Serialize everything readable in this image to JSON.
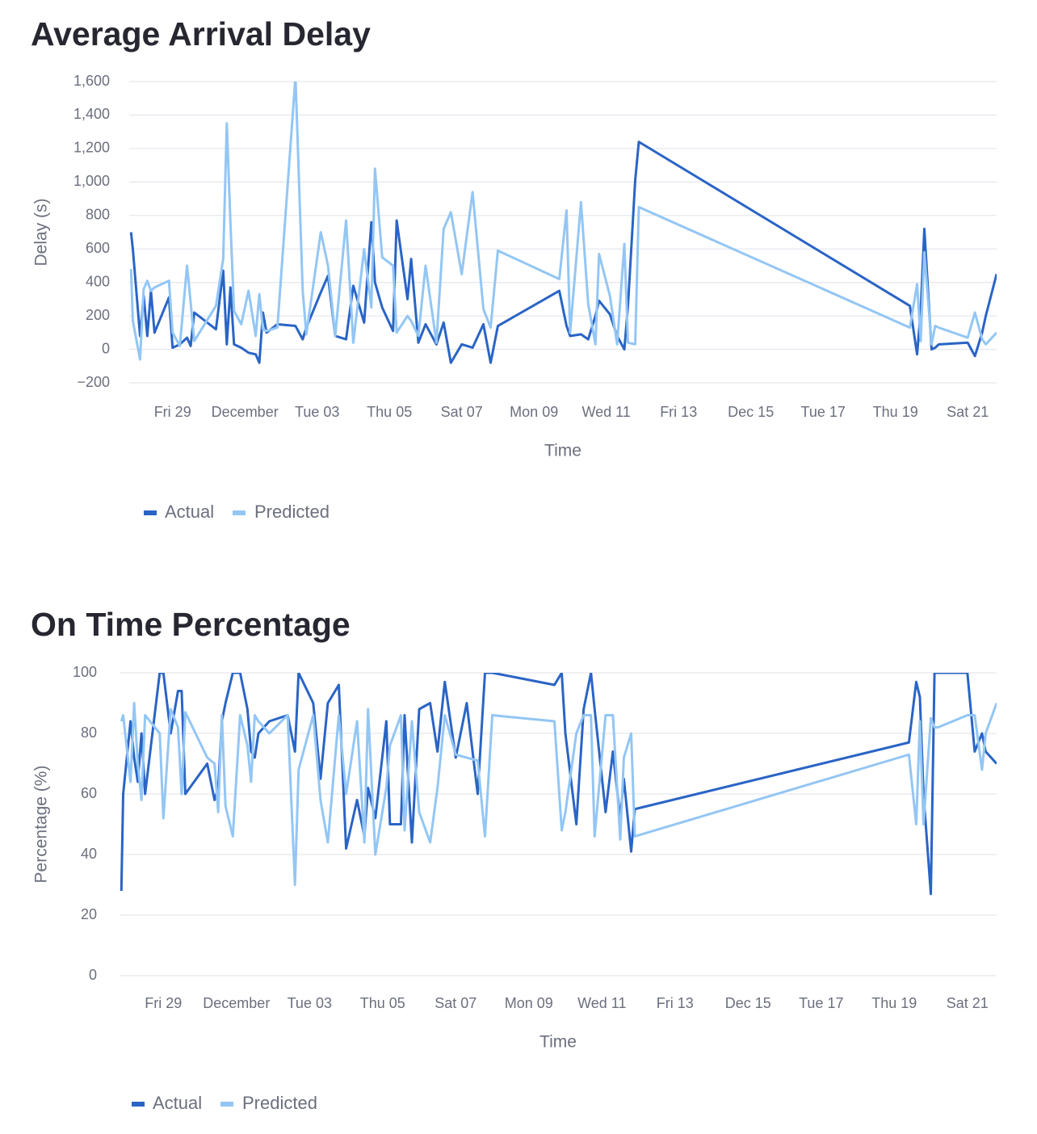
{
  "chart_data": [
    {
      "type": "line",
      "title": "Average Arrival Delay",
      "x_label": "Time",
      "y_label": "Delay (s)",
      "x": [
        27.85,
        27.9,
        28.1,
        28.2,
        28.3,
        28.4,
        28.5,
        28.9,
        29.0,
        29.2,
        29.4,
        29.5,
        29.6,
        30.2,
        30.4,
        30.5,
        30.6,
        30.7,
        30.9,
        31.1,
        31.3,
        31.4,
        31.5,
        31.6,
        31.9,
        32.4,
        32.6,
        32.7,
        33.1,
        33.3,
        33.5,
        33.8,
        34.0,
        34.3,
        34.5,
        34.6,
        34.8,
        35.1,
        35.2,
        35.5,
        35.6,
        35.8,
        36.0,
        36.3,
        36.5,
        36.7,
        37.0,
        37.3,
        37.6,
        37.8,
        38.0,
        39.7,
        39.9,
        40.0,
        40.3,
        40.5,
        40.7,
        40.8,
        41.1,
        41.3,
        41.5,
        41.6,
        41.8,
        41.9,
        49.4,
        49.6,
        49.7,
        49.8,
        50.0,
        50.1,
        50.2,
        51.0,
        51.2,
        51.4,
        51.5,
        51.8
      ],
      "series": [
        {
          "name": "Actual",
          "color": "#2a64c5",
          "values": [
            700,
            600,
            80,
            320,
            80,
            350,
            100,
            310,
            10,
            30,
            70,
            20,
            220,
            120,
            470,
            30,
            370,
            30,
            10,
            -20,
            -30,
            -80,
            220,
            100,
            150,
            140,
            60,
            130,
            340,
            440,
            80,
            60,
            380,
            160,
            760,
            400,
            250,
            110,
            770,
            300,
            540,
            40,
            150,
            30,
            160,
            -80,
            30,
            10,
            150,
            -80,
            140,
            350,
            140,
            80,
            90,
            60,
            200,
            290,
            210,
            80,
            0,
            260,
            1010,
            1240,
            260,
            -30,
            230,
            720,
            0,
            10,
            30,
            40,
            -40,
            100,
            200,
            450
          ]
        },
        {
          "name": "Predicted",
          "color": "#93c6f4",
          "values": [
            480,
            170,
            -60,
            360,
            410,
            350,
            370,
            410,
            100,
            20,
            500,
            280,
            50,
            260,
            540,
            1350,
            760,
            230,
            150,
            350,
            80,
            330,
            120,
            110,
            130,
            1630,
            350,
            90,
            700,
            500,
            80,
            770,
            40,
            600,
            250,
            1080,
            550,
            500,
            100,
            200,
            170,
            80,
            500,
            40,
            720,
            820,
            450,
            940,
            240,
            130,
            590,
            420,
            830,
            100,
            880,
            270,
            30,
            570,
            320,
            30,
            630,
            40,
            30,
            850,
            130,
            390,
            50,
            580,
            30,
            140,
            130,
            70,
            220,
            60,
            30,
            100
          ]
        }
      ],
      "xlim": [
        27.8,
        51.8
      ],
      "xticks": [
        {
          "value": 29,
          "label": "Fri 29"
        },
        {
          "value": 31,
          "label": "December"
        },
        {
          "value": 33,
          "label": "Tue 03"
        },
        {
          "value": 35,
          "label": "Thu 05"
        },
        {
          "value": 37,
          "label": "Sat 07"
        },
        {
          "value": 39,
          "label": "Mon 09"
        },
        {
          "value": 41,
          "label": "Wed 11"
        },
        {
          "value": 43,
          "label": "Fri 13"
        },
        {
          "value": 45,
          "label": "Dec 15"
        },
        {
          "value": 47,
          "label": "Tue 17"
        },
        {
          "value": 49,
          "label": "Thu 19"
        },
        {
          "value": 51,
          "label": "Sat 21"
        }
      ],
      "ylim": [
        -200,
        1600
      ],
      "yticks": [
        {
          "value": -200,
          "label": "−200"
        },
        0,
        200,
        400,
        600,
        800,
        {
          "value": 1000,
          "label": "1,000"
        },
        {
          "value": 1200,
          "label": "1,200"
        },
        {
          "value": 1400,
          "label": "1,400"
        },
        {
          "value": 1600,
          "label": "1,600"
        }
      ],
      "grid": true,
      "legend": "bottom-left"
    },
    {
      "type": "line",
      "title": "On Time Percentage",
      "x_label": "Time",
      "y_label": "Percentage (%)",
      "x": [
        27.85,
        27.9,
        28.1,
        28.2,
        28.3,
        28.4,
        28.5,
        28.9,
        29.0,
        29.2,
        29.4,
        29.5,
        29.6,
        30.2,
        30.4,
        30.5,
        30.6,
        30.7,
        30.9,
        31.1,
        31.3,
        31.4,
        31.5,
        31.6,
        31.9,
        32.4,
        32.6,
        32.7,
        33.1,
        33.3,
        33.5,
        33.8,
        34.0,
        34.3,
        34.5,
        34.6,
        34.8,
        35.1,
        35.2,
        35.5,
        35.6,
        35.8,
        36.0,
        36.3,
        36.5,
        36.7,
        37.0,
        37.3,
        37.6,
        37.8,
        38.0,
        39.7,
        39.9,
        40.0,
        40.3,
        40.5,
        40.7,
        40.8,
        41.1,
        41.3,
        41.5,
        41.6,
        41.8,
        41.9,
        49.4,
        49.6,
        49.7,
        49.8,
        50.0,
        50.1,
        50.2,
        51.0,
        51.2,
        51.4,
        51.5,
        51.8
      ],
      "series": [
        {
          "name": "Actual",
          "color": "#2a64c5",
          "values": [
            28,
            60,
            84,
            72,
            64,
            80,
            60,
            100,
            100,
            80,
            94,
            94,
            60,
            70,
            58,
            62,
            84,
            90,
            100,
            100,
            88,
            74,
            72,
            80,
            84,
            86,
            74,
            100,
            90,
            65,
            90,
            96,
            42,
            58,
            46,
            62,
            52,
            84,
            50,
            50,
            86,
            44,
            88,
            90,
            74,
            97,
            72,
            90,
            60,
            100,
            100,
            96,
            100,
            80,
            50,
            88,
            100,
            88,
            54,
            74,
            52,
            65,
            41,
            55,
            77,
            97,
            92,
            60,
            27,
            100,
            100,
            100,
            74,
            80,
            74,
            70
          ]
        },
        {
          "name": "Predicted",
          "color": "#93c6f4",
          "values": [
            84,
            86,
            64,
            90,
            70,
            58,
            86,
            80,
            52,
            88,
            82,
            60,
            87,
            72,
            70,
            54,
            86,
            56,
            46,
            86,
            76,
            64,
            86,
            84,
            80,
            86,
            30,
            68,
            86,
            58,
            44,
            86,
            60,
            84,
            44,
            88,
            40,
            62,
            76,
            86,
            48,
            84,
            54,
            44,
            62,
            86,
            73,
            72,
            71,
            46,
            86,
            84,
            48,
            54,
            80,
            86,
            86,
            46,
            86,
            86,
            45,
            72,
            80,
            46,
            73,
            50,
            84,
            50,
            85,
            82,
            82,
            86,
            86,
            68,
            80,
            90
          ]
        }
      ],
      "xlim": [
        27.8,
        51.8
      ],
      "xticks": [
        {
          "value": 29,
          "label": "Fri 29"
        },
        {
          "value": 31,
          "label": "December"
        },
        {
          "value": 33,
          "label": "Tue 03"
        },
        {
          "value": 35,
          "label": "Thu 05"
        },
        {
          "value": 37,
          "label": "Sat 07"
        },
        {
          "value": 39,
          "label": "Mon 09"
        },
        {
          "value": 41,
          "label": "Wed 11"
        },
        {
          "value": 43,
          "label": "Fri 13"
        },
        {
          "value": 45,
          "label": "Dec 15"
        },
        {
          "value": 47,
          "label": "Tue 17"
        },
        {
          "value": 49,
          "label": "Thu 19"
        },
        {
          "value": 51,
          "label": "Sat 21"
        }
      ],
      "ylim": [
        0,
        100
      ],
      "yticks": [
        0,
        20,
        40,
        60,
        80,
        100
      ],
      "grid": true,
      "legend": "bottom-left"
    }
  ]
}
